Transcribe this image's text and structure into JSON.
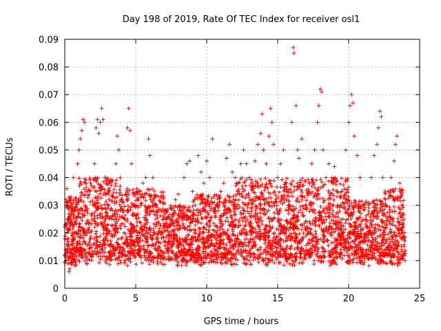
{
  "chart_data": {
    "type": "scatter",
    "title": "Day 198 of 2019, Rate Of TEC Index for receiver osl1",
    "xlabel": "GPS time / hours",
    "ylabel": "ROTI / TECUs",
    "xlim": [
      0,
      25
    ],
    "ylim": [
      0,
      0.09
    ],
    "x_ticks": [
      "0",
      "5",
      "10",
      "15",
      "20",
      "25"
    ],
    "y_ticks": [
      "0",
      "0.01",
      "0.02",
      "0.03",
      "0.04",
      "0.05",
      "0.06",
      "0.07",
      "0.08",
      "0.09"
    ],
    "grid": true,
    "legend": "none",
    "marker": "plus",
    "color": "#ff0000",
    "points": [
      [
        0.1,
        0.032
      ],
      [
        0.15,
        0.036
      ],
      [
        0.2,
        0.025
      ],
      [
        0.25,
        0.018
      ],
      [
        0.3,
        0.006
      ],
      [
        0.35,
        0.007
      ],
      [
        0.45,
        0.033
      ],
      [
        0.5,
        0.024
      ],
      [
        0.6,
        0.04
      ],
      [
        0.7,
        0.028
      ],
      [
        0.8,
        0.013
      ],
      [
        0.9,
        0.045
      ],
      [
        1.0,
        0.05
      ],
      [
        1.1,
        0.054
      ],
      [
        1.2,
        0.057
      ],
      [
        1.3,
        0.061
      ],
      [
        1.4,
        0.06
      ],
      [
        1.5,
        0.035
      ],
      [
        1.6,
        0.02
      ],
      [
        1.8,
        0.012
      ],
      [
        2.0,
        0.03
      ],
      [
        2.1,
        0.045
      ],
      [
        2.2,
        0.058
      ],
      [
        2.3,
        0.061
      ],
      [
        2.4,
        0.056
      ],
      [
        2.5,
        0.06
      ],
      [
        2.6,
        0.065
      ],
      [
        2.7,
        0.061
      ],
      [
        2.8,
        0.04
      ],
      [
        3.0,
        0.026
      ],
      [
        3.2,
        0.015
      ],
      [
        3.4,
        0.033
      ],
      [
        3.6,
        0.045
      ],
      [
        3.7,
        0.055
      ],
      [
        3.8,
        0.05
      ],
      [
        4.0,
        0.012
      ],
      [
        4.2,
        0.01
      ],
      [
        4.4,
        0.058
      ],
      [
        4.5,
        0.065
      ],
      [
        4.6,
        0.057
      ],
      [
        4.7,
        0.045
      ],
      [
        4.9,
        0.022
      ],
      [
        5.1,
        0.03
      ],
      [
        5.3,
        0.035
      ],
      [
        5.5,
        0.038
      ],
      [
        5.7,
        0.04
      ],
      [
        5.9,
        0.054
      ],
      [
        6.0,
        0.048
      ],
      [
        6.2,
        0.04
      ],
      [
        6.4,
        0.025
      ],
      [
        6.6,
        0.015
      ],
      [
        6.8,
        0.02
      ],
      [
        7.0,
        0.017
      ],
      [
        7.2,
        0.013
      ],
      [
        7.5,
        0.025
      ],
      [
        7.8,
        0.032
      ],
      [
        8.0,
        0.034
      ],
      [
        8.2,
        0.028
      ],
      [
        8.4,
        0.04
      ],
      [
        8.6,
        0.045
      ],
      [
        8.8,
        0.046
      ],
      [
        9.0,
        0.035
      ],
      [
        9.2,
        0.03
      ],
      [
        9.4,
        0.048
      ],
      [
        9.6,
        0.042
      ],
      [
        9.8,
        0.038
      ],
      [
        10.0,
        0.046
      ],
      [
        10.2,
        0.04
      ],
      [
        10.4,
        0.054
      ],
      [
        10.6,
        0.028
      ],
      [
        10.8,
        0.03
      ],
      [
        11.0,
        0.035
      ],
      [
        11.2,
        0.038
      ],
      [
        11.4,
        0.047
      ],
      [
        11.6,
        0.052
      ],
      [
        11.8,
        0.042
      ],
      [
        12.0,
        0.04
      ],
      [
        12.2,
        0.035
      ],
      [
        12.4,
        0.045
      ],
      [
        12.6,
        0.05
      ],
      [
        12.8,
        0.045
      ],
      [
        13.0,
        0.04
      ],
      [
        13.2,
        0.038
      ],
      [
        13.4,
        0.046
      ],
      [
        13.6,
        0.052
      ],
      [
        13.8,
        0.056
      ],
      [
        13.9,
        0.063
      ],
      [
        14.0,
        0.05
      ],
      [
        14.2,
        0.045
      ],
      [
        14.4,
        0.055
      ],
      [
        14.5,
        0.065
      ],
      [
        14.6,
        0.06
      ],
      [
        14.7,
        0.052
      ],
      [
        15.0,
        0.04
      ],
      [
        15.2,
        0.045
      ],
      [
        15.4,
        0.05
      ],
      [
        15.6,
        0.038
      ],
      [
        15.8,
        0.03
      ],
      [
        16.0,
        0.06
      ],
      [
        16.1,
        0.087
      ],
      [
        16.15,
        0.085
      ],
      [
        16.3,
        0.066
      ],
      [
        16.4,
        0.05
      ],
      [
        16.5,
        0.047
      ],
      [
        16.7,
        0.054
      ],
      [
        17.0,
        0.03
      ],
      [
        17.2,
        0.038
      ],
      [
        17.4,
        0.045
      ],
      [
        17.6,
        0.05
      ],
      [
        17.8,
        0.06
      ],
      [
        17.9,
        0.066
      ],
      [
        18.0,
        0.072
      ],
      [
        18.1,
        0.071
      ],
      [
        18.2,
        0.05
      ],
      [
        18.4,
        0.04
      ],
      [
        18.6,
        0.045
      ],
      [
        18.8,
        0.04
      ],
      [
        19.0,
        0.044
      ],
      [
        19.2,
        0.035
      ],
      [
        19.4,
        0.03
      ],
      [
        19.6,
        0.025
      ],
      [
        19.8,
        0.05
      ],
      [
        20.0,
        0.06
      ],
      [
        20.1,
        0.066
      ],
      [
        20.2,
        0.07
      ],
      [
        20.3,
        0.067
      ],
      [
        20.4,
        0.055
      ],
      [
        20.6,
        0.048
      ],
      [
        20.8,
        0.04
      ],
      [
        21.0,
        0.03
      ],
      [
        21.2,
        0.025
      ],
      [
        21.4,
        0.03
      ],
      [
        21.6,
        0.04
      ],
      [
        21.8,
        0.048
      ],
      [
        22.0,
        0.052
      ],
      [
        22.1,
        0.058
      ],
      [
        22.2,
        0.064
      ],
      [
        22.3,
        0.062
      ],
      [
        22.4,
        0.04
      ],
      [
        22.6,
        0.03
      ],
      [
        22.8,
        0.035
      ],
      [
        23.0,
        0.04
      ],
      [
        23.2,
        0.046
      ],
      [
        23.3,
        0.052
      ],
      [
        23.4,
        0.055
      ],
      [
        23.6,
        0.038
      ],
      [
        23.8,
        0.03
      ],
      [
        23.9,
        0.025
      ]
    ]
  }
}
